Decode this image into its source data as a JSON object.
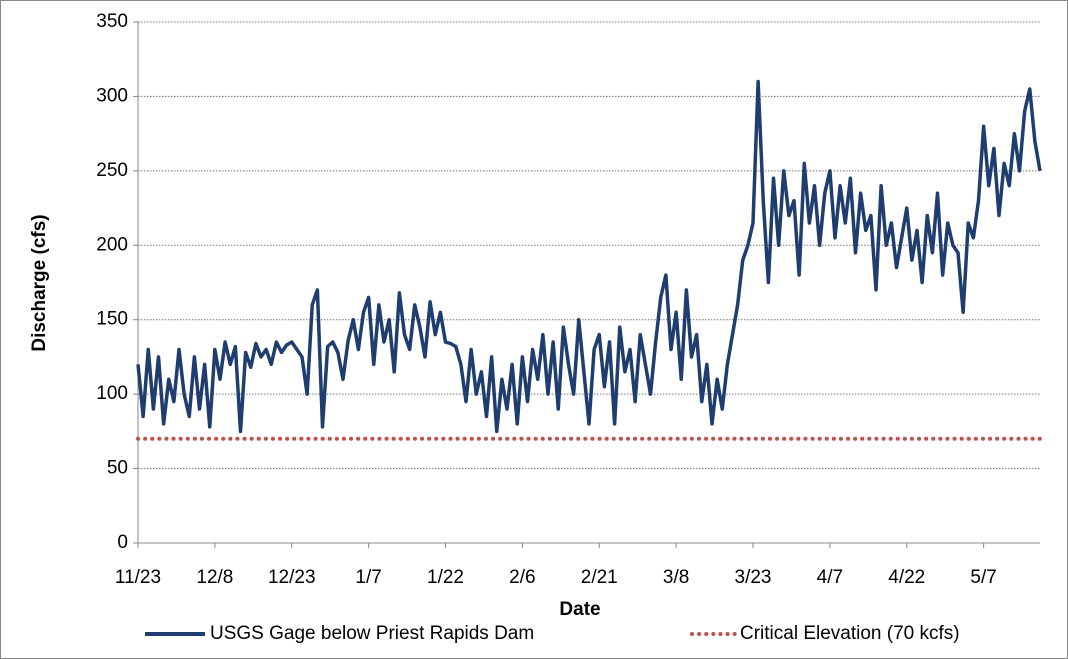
{
  "chart_data": {
    "type": "line",
    "x_label": "Date",
    "y_label": "Discharge (cfs)",
    "categories": [
      "11/23",
      null,
      null,
      null,
      null,
      null,
      null,
      null,
      null,
      null,
      null,
      null,
      null,
      null,
      null,
      "12/8",
      null,
      null,
      null,
      null,
      null,
      null,
      null,
      null,
      null,
      null,
      null,
      null,
      null,
      null,
      "12/23",
      null,
      null,
      null,
      null,
      null,
      null,
      null,
      null,
      null,
      null,
      null,
      null,
      null,
      null,
      "1/7",
      null,
      null,
      null,
      null,
      null,
      null,
      null,
      null,
      null,
      null,
      null,
      null,
      null,
      null,
      "1/22",
      null,
      null,
      null,
      null,
      null,
      null,
      null,
      null,
      null,
      null,
      null,
      null,
      null,
      null,
      "2/6",
      null,
      null,
      null,
      null,
      null,
      null,
      null,
      null,
      null,
      null,
      null,
      null,
      null,
      null,
      "2/21",
      null,
      null,
      null,
      null,
      null,
      null,
      null,
      null,
      null,
      null,
      null,
      null,
      null,
      null,
      "3/8",
      null,
      null,
      null,
      null,
      null,
      null,
      null,
      null,
      null,
      null,
      null,
      null,
      null,
      null,
      "3/23",
      null,
      null,
      null,
      null,
      null,
      null,
      null,
      null,
      null,
      null,
      null,
      null,
      null,
      null,
      "4/7",
      null,
      null,
      null,
      null,
      null,
      null,
      null,
      null,
      null,
      null,
      null,
      null,
      null,
      null,
      "4/22",
      null,
      null,
      null,
      null,
      null,
      null,
      null,
      null,
      null,
      null,
      null,
      null,
      null,
      null,
      "5/7",
      null,
      null,
      null,
      null,
      null,
      null,
      null,
      null,
      null,
      null,
      null
    ],
    "series": [
      {
        "name": "USGS Gage below Priest Rapids Dam",
        "color": "#1f3d6e",
        "values": [
          120,
          85,
          130,
          90,
          125,
          80,
          110,
          95,
          130,
          100,
          85,
          125,
          90,
          120,
          78,
          130,
          110,
          135,
          120,
          132,
          75,
          128,
          118,
          134,
          125,
          130,
          120,
          135,
          128,
          133,
          135,
          130,
          125,
          100,
          160,
          170,
          78,
          132,
          135,
          128,
          110,
          136,
          150,
          130,
          155,
          165,
          120,
          160,
          135,
          150,
          115,
          168,
          140,
          130,
          160,
          145,
          125,
          162,
          140,
          155,
          135,
          134,
          132,
          120,
          95,
          130,
          100,
          115,
          85,
          125,
          75,
          110,
          90,
          120,
          80,
          125,
          95,
          130,
          110,
          140,
          100,
          135,
          90,
          145,
          120,
          100,
          150,
          115,
          80,
          130,
          140,
          105,
          135,
          80,
          145,
          115,
          130,
          95,
          140,
          120,
          100,
          135,
          165,
          180,
          130,
          155,
          110,
          170,
          125,
          140,
          95,
          120,
          80,
          110,
          90,
          120,
          140,
          160,
          190,
          200,
          215,
          310,
          230,
          175,
          245,
          200,
          250,
          220,
          230,
          180,
          255,
          215,
          240,
          200,
          235,
          250,
          205,
          240,
          215,
          245,
          195,
          235,
          210,
          220,
          170,
          240,
          200,
          215,
          185,
          205,
          225,
          190,
          210,
          175,
          220,
          195,
          235,
          180,
          215,
          200,
          195,
          155,
          215,
          205,
          230,
          280,
          240,
          265,
          220,
          255,
          240,
          275,
          250,
          290,
          305,
          270,
          250
        ]
      }
    ],
    "reference_line": {
      "name": "Critical Elevation (70 kcfs)",
      "value": 70,
      "color": "#c0504d",
      "style": "dotted"
    },
    "ylim": [
      0,
      350
    ],
    "yticks": [
      0,
      50,
      100,
      150,
      200,
      250,
      300,
      350
    ],
    "grid": true
  }
}
